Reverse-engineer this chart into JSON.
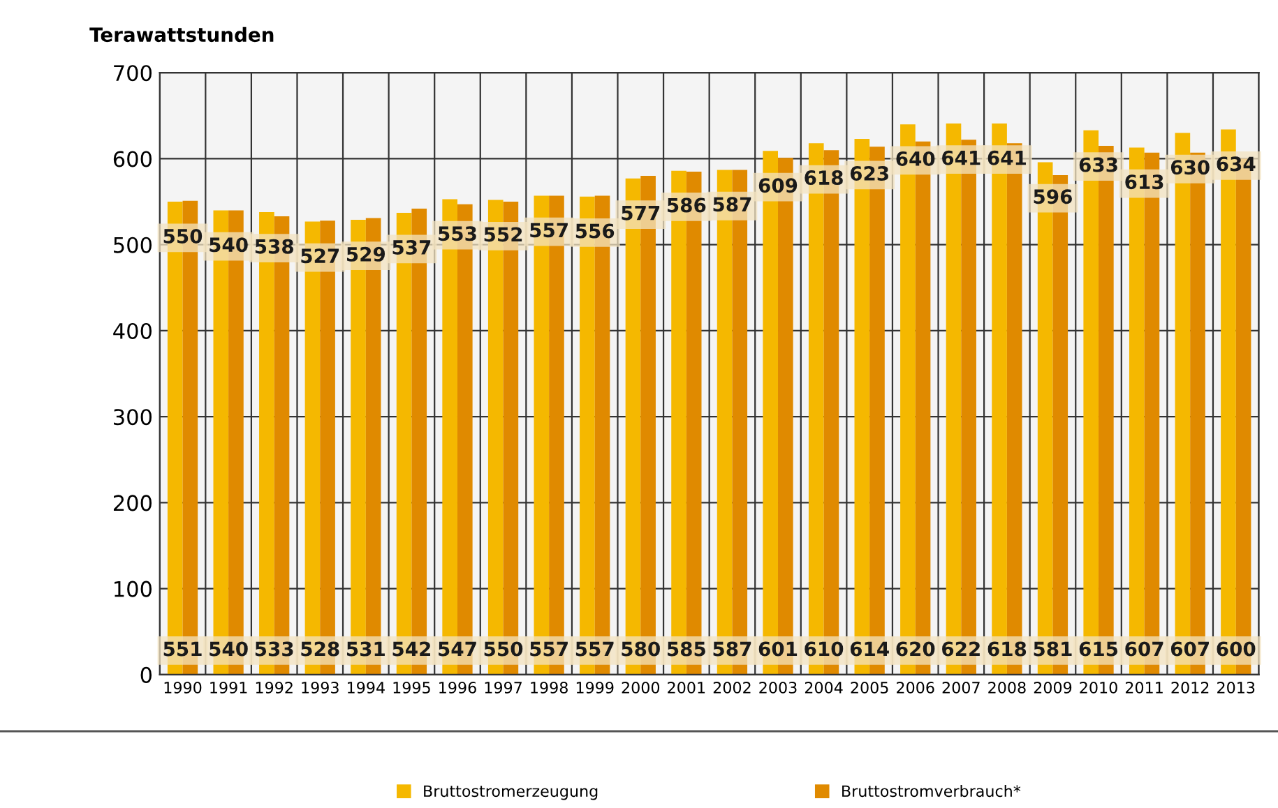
{
  "chart_data": {
    "type": "bar",
    "ylabel": "Terawattstunden",
    "categories": [
      "1990",
      "1991",
      "1992",
      "1993",
      "1994",
      "1995",
      "1996",
      "1997",
      "1998",
      "1999",
      "2000",
      "2001",
      "2002",
      "2003",
      "2004",
      "2005",
      "2006",
      "2007",
      "2008",
      "2009",
      "2010",
      "2011",
      "2012",
      "2013"
    ],
    "series": [
      {
        "name": "Bruttostromerzeugung",
        "color": "#f5b800",
        "values": [
          550,
          540,
          538,
          527,
          529,
          537,
          553,
          552,
          557,
          556,
          577,
          586,
          587,
          609,
          618,
          623,
          640,
          641,
          641,
          596,
          633,
          613,
          630,
          634
        ]
      },
      {
        "name": "Bruttostromverbrauch*",
        "color": "#e08a00",
        "values": [
          551,
          540,
          533,
          528,
          531,
          542,
          547,
          550,
          557,
          557,
          580,
          585,
          587,
          601,
          610,
          614,
          620,
          622,
          618,
          581,
          615,
          607,
          607,
          600
        ]
      }
    ],
    "ylim": [
      0,
      700
    ],
    "yticks": [
      0,
      100,
      200,
      300,
      400,
      500,
      600,
      700
    ],
    "grid": true,
    "legend": "bottom",
    "data_labels": true
  }
}
